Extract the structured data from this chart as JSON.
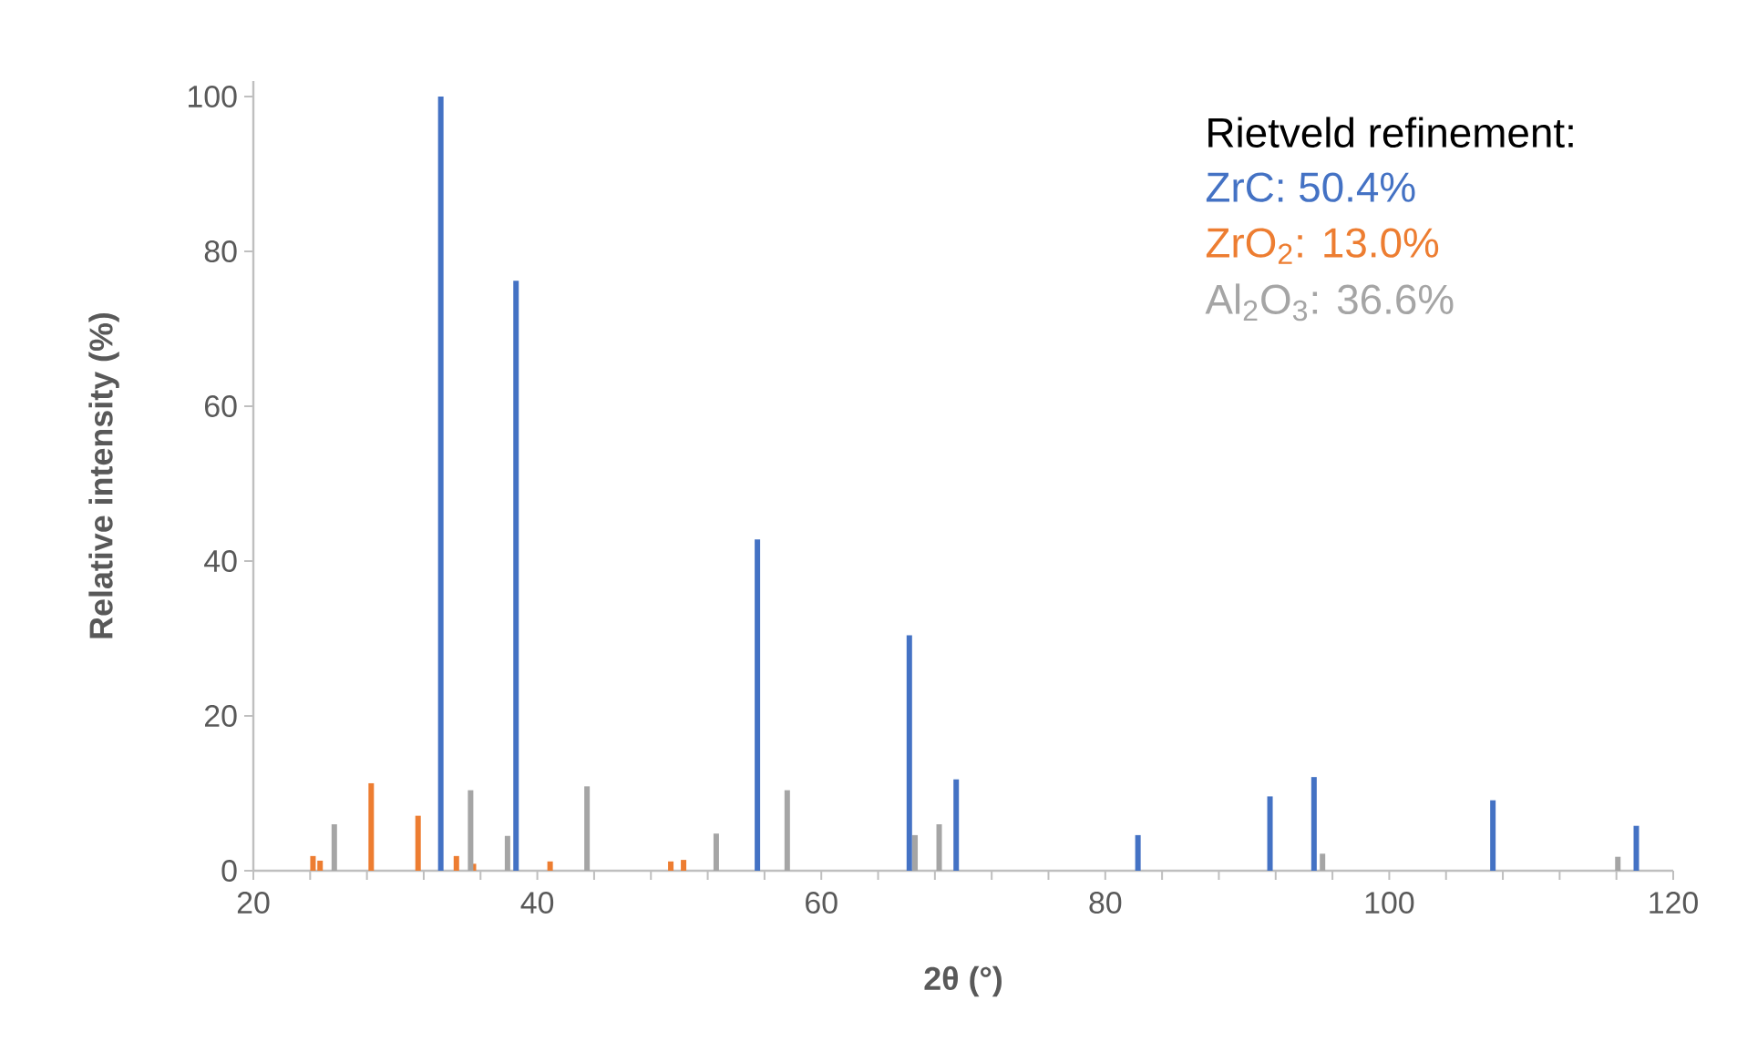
{
  "chart_data": {
    "type": "bar",
    "xlabel": "2θ (°)",
    "ylabel": "Relative intensity (%)",
    "series": [
      {
        "color": "#4472c4",
        "x": [
          33.2,
          38.5,
          55.5,
          66.2,
          69.5,
          82.3,
          91.6,
          94.7,
          107.3,
          117.4
        ],
        "values": [
          100,
          76.2,
          42.8,
          30.4,
          11.8,
          4.6,
          9.6,
          12.1,
          9.1,
          5.8
        ]
      },
      {
        "color": "#ed7d31",
        "x": [
          24.2,
          24.7,
          28.3,
          31.6,
          34.3,
          35.5,
          40.9,
          49.4,
          50.3
        ],
        "values": [
          1.9,
          1.3,
          11.3,
          7.1,
          1.9,
          0.9,
          1.2,
          1.2,
          1.4
        ]
      },
      {
        "color": "#a5a5a5",
        "x": [
          25.7,
          35.3,
          37.9,
          43.5,
          52.6,
          57.6,
          66.6,
          68.3,
          95.3,
          116.1
        ],
        "values": [
          6.0,
          10.4,
          4.5,
          10.9,
          4.8,
          10.4,
          4.6,
          6.0,
          2.2,
          1.8
        ]
      }
    ],
    "xlim": [
      20,
      120
    ],
    "xticks": [
      20,
      {
        "value": 24,
        "label": null
      },
      {
        "value": 28,
        "label": null
      },
      {
        "value": 32,
        "label": null
      },
      {
        "value": 36,
        "label": null
      },
      40,
      {
        "value": 44,
        "label": null
      },
      {
        "value": 48,
        "label": null
      },
      {
        "value": 52,
        "label": null
      },
      {
        "value": 56,
        "label": null
      },
      60,
      {
        "value": 64,
        "label": null
      },
      {
        "value": 68,
        "label": null
      },
      {
        "value": 72,
        "label": null
      },
      {
        "value": 76,
        "label": null
      },
      80,
      {
        "value": 84,
        "label": null
      },
      {
        "value": 88,
        "label": null
      },
      {
        "value": 92,
        "label": null
      },
      {
        "value": 96,
        "label": null
      },
      100,
      {
        "value": 104,
        "label": null
      },
      {
        "value": 108,
        "label": null
      },
      {
        "value": 112,
        "label": null
      },
      {
        "value": 116,
        "label": null
      },
      120
    ],
    "ylim": [
      0,
      102
    ],
    "yticks": [
      0,
      20,
      40,
      60,
      80,
      100
    ],
    "grid": false,
    "annotations": [
      "Rietveld refinement:",
      "ZrC:    50.4%",
      "ZrO$_{2}$:   13.0%",
      "Al$_{2}$O$_{3}$:  36.6%"
    ]
  }
}
